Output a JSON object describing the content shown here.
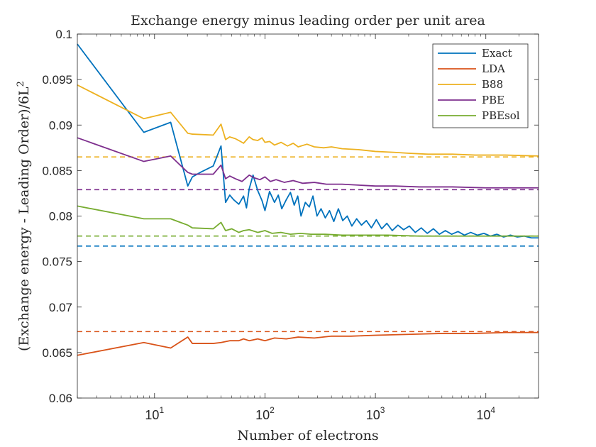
{
  "chart_data": {
    "type": "line",
    "title": "Exchange energy minus leading order per unit area",
    "xlabel": "Number of electrons",
    "ylabel": "(Exchange energy - Leading Order)/6L",
    "ylabel_exponent": "2",
    "xscale": "log",
    "xlim": [
      2,
      30000
    ],
    "ylim": [
      0.06,
      0.1
    ],
    "grid": false,
    "legend_position": "top-right",
    "y_ticks": [
      {
        "value": 0.06,
        "label": "0.06"
      },
      {
        "value": 0.065,
        "label": "0.065"
      },
      {
        "value": 0.07,
        "label": "0.07"
      },
      {
        "value": 0.075,
        "label": "0.075"
      },
      {
        "value": 0.08,
        "label": "0.08"
      },
      {
        "value": 0.085,
        "label": "0.085"
      },
      {
        "value": 0.09,
        "label": "0.09"
      },
      {
        "value": 0.095,
        "label": "0.095"
      },
      {
        "value": 0.1,
        "label": "0.1"
      }
    ],
    "x_ticks": [
      {
        "value": 10,
        "base": "10",
        "exp": "1"
      },
      {
        "value": 100,
        "base": "10",
        "exp": "2"
      },
      {
        "value": 1000,
        "base": "10",
        "exp": "3"
      },
      {
        "value": 10000,
        "base": "10",
        "exp": "4"
      }
    ],
    "series": [
      {
        "name": "Exact",
        "color": "#0072BD",
        "asymptote": 0.0767,
        "points": [
          [
            2,
            0.0989
          ],
          [
            8,
            0.0892
          ],
          [
            14,
            0.0903
          ],
          [
            20,
            0.0833
          ],
          [
            22,
            0.0843
          ],
          [
            26,
            0.0848
          ],
          [
            34,
            0.0855
          ],
          [
            40,
            0.0877
          ],
          [
            44,
            0.0815
          ],
          [
            48,
            0.0823
          ],
          [
            52,
            0.0818
          ],
          [
            58,
            0.0813
          ],
          [
            64,
            0.0822
          ],
          [
            68,
            0.0809
          ],
          [
            72,
            0.083
          ],
          [
            78,
            0.0845
          ],
          [
            86,
            0.0828
          ],
          [
            94,
            0.0817
          ],
          [
            100,
            0.0806
          ],
          [
            110,
            0.0827
          ],
          [
            122,
            0.0815
          ],
          [
            132,
            0.0823
          ],
          [
            142,
            0.0808
          ],
          [
            156,
            0.0818
          ],
          [
            170,
            0.0826
          ],
          [
            184,
            0.0812
          ],
          [
            198,
            0.0822
          ],
          [
            212,
            0.08
          ],
          [
            232,
            0.0815
          ],
          [
            252,
            0.081
          ],
          [
            272,
            0.0822
          ],
          [
            296,
            0.08
          ],
          [
            322,
            0.0808
          ],
          [
            352,
            0.0798
          ],
          [
            384,
            0.0806
          ],
          [
            420,
            0.0794
          ],
          [
            462,
            0.0808
          ],
          [
            506,
            0.0795
          ],
          [
            556,
            0.08
          ],
          [
            612,
            0.0789
          ],
          [
            676,
            0.0797
          ],
          [
            748,
            0.079
          ],
          [
            828,
            0.0795
          ],
          [
            920,
            0.0787
          ],
          [
            1020,
            0.0796
          ],
          [
            1140,
            0.0786
          ],
          [
            1270,
            0.0792
          ],
          [
            1420,
            0.0784
          ],
          [
            1600,
            0.079
          ],
          [
            1800,
            0.0785
          ],
          [
            2030,
            0.0789
          ],
          [
            2300,
            0.0782
          ],
          [
            2600,
            0.0787
          ],
          [
            2950,
            0.0781
          ],
          [
            3350,
            0.0786
          ],
          [
            3800,
            0.078
          ],
          [
            4300,
            0.0784
          ],
          [
            4900,
            0.078
          ],
          [
            5600,
            0.0783
          ],
          [
            6400,
            0.0779
          ],
          [
            7300,
            0.0782
          ],
          [
            8400,
            0.0779
          ],
          [
            9600,
            0.0781
          ],
          [
            11000,
            0.0778
          ],
          [
            12600,
            0.078
          ],
          [
            14500,
            0.0777
          ],
          [
            16700,
            0.0779
          ],
          [
            19300,
            0.0777
          ],
          [
            22300,
            0.0778
          ],
          [
            25800,
            0.0776
          ],
          [
            30000,
            0.0776
          ]
        ]
      },
      {
        "name": "LDA",
        "color": "#D95319",
        "asymptote": 0.0673,
        "points": [
          [
            2,
            0.0647
          ],
          [
            8,
            0.0661
          ],
          [
            14,
            0.0655
          ],
          [
            20,
            0.0667
          ],
          [
            22,
            0.066
          ],
          [
            34,
            0.066
          ],
          [
            40,
            0.0661
          ],
          [
            48,
            0.0663
          ],
          [
            58,
            0.0663
          ],
          [
            64,
            0.0665
          ],
          [
            72,
            0.0663
          ],
          [
            86,
            0.0665
          ],
          [
            100,
            0.0663
          ],
          [
            122,
            0.0666
          ],
          [
            156,
            0.0665
          ],
          [
            200,
            0.0667
          ],
          [
            280,
            0.0666
          ],
          [
            400,
            0.0668
          ],
          [
            600,
            0.0668
          ],
          [
            1000,
            0.0669
          ],
          [
            2000,
            0.067
          ],
          [
            4000,
            0.0671
          ],
          [
            8000,
            0.0671
          ],
          [
            15000,
            0.0672
          ],
          [
            30000,
            0.0672
          ]
        ]
      },
      {
        "name": "B88",
        "color": "#EDB120",
        "asymptote": 0.0865,
        "points": [
          [
            2,
            0.0944
          ],
          [
            8,
            0.0907
          ],
          [
            14,
            0.0914
          ],
          [
            20,
            0.0891
          ],
          [
            22,
            0.089
          ],
          [
            34,
            0.0889
          ],
          [
            40,
            0.0901
          ],
          [
            44,
            0.0884
          ],
          [
            48,
            0.0887
          ],
          [
            54,
            0.0885
          ],
          [
            60,
            0.0882
          ],
          [
            64,
            0.088
          ],
          [
            72,
            0.0887
          ],
          [
            78,
            0.0884
          ],
          [
            86,
            0.0883
          ],
          [
            94,
            0.0886
          ],
          [
            100,
            0.0881
          ],
          [
            110,
            0.0882
          ],
          [
            122,
            0.0878
          ],
          [
            140,
            0.0881
          ],
          [
            160,
            0.0877
          ],
          [
            180,
            0.088
          ],
          [
            200,
            0.0876
          ],
          [
            240,
            0.0879
          ],
          [
            280,
            0.0876
          ],
          [
            340,
            0.0875
          ],
          [
            400,
            0.0876
          ],
          [
            500,
            0.0874
          ],
          [
            700,
            0.0873
          ],
          [
            1000,
            0.0871
          ],
          [
            1500,
            0.087
          ],
          [
            2000,
            0.0869
          ],
          [
            3000,
            0.0868
          ],
          [
            5000,
            0.0868
          ],
          [
            8000,
            0.0867
          ],
          [
            15000,
            0.0867
          ],
          [
            30000,
            0.0866
          ]
        ]
      },
      {
        "name": "PBE",
        "color": "#7E2F8E",
        "asymptote": 0.0829,
        "points": [
          [
            2,
            0.0886
          ],
          [
            8,
            0.086
          ],
          [
            14,
            0.0866
          ],
          [
            20,
            0.0848
          ],
          [
            22,
            0.0846
          ],
          [
            34,
            0.0846
          ],
          [
            40,
            0.0856
          ],
          [
            44,
            0.0841
          ],
          [
            48,
            0.0844
          ],
          [
            54,
            0.0841
          ],
          [
            62,
            0.0838
          ],
          [
            72,
            0.0845
          ],
          [
            80,
            0.0842
          ],
          [
            90,
            0.084
          ],
          [
            100,
            0.0843
          ],
          [
            112,
            0.0838
          ],
          [
            126,
            0.084
          ],
          [
            150,
            0.0837
          ],
          [
            180,
            0.0839
          ],
          [
            220,
            0.0836
          ],
          [
            280,
            0.0837
          ],
          [
            360,
            0.0835
          ],
          [
            500,
            0.0835
          ],
          [
            700,
            0.0834
          ],
          [
            1000,
            0.0833
          ],
          [
            1500,
            0.0833
          ],
          [
            2500,
            0.0832
          ],
          [
            5000,
            0.0832
          ],
          [
            10000,
            0.0831
          ],
          [
            30000,
            0.0831
          ]
        ]
      },
      {
        "name": "PBEsol",
        "color": "#77AC30",
        "asymptote": 0.0778,
        "points": [
          [
            2,
            0.0811
          ],
          [
            8,
            0.0797
          ],
          [
            14,
            0.0797
          ],
          [
            20,
            0.079
          ],
          [
            22,
            0.0787
          ],
          [
            34,
            0.0786
          ],
          [
            40,
            0.0793
          ],
          [
            44,
            0.0784
          ],
          [
            50,
            0.0786
          ],
          [
            58,
            0.0782
          ],
          [
            64,
            0.0784
          ],
          [
            72,
            0.0785
          ],
          [
            86,
            0.0782
          ],
          [
            100,
            0.0784
          ],
          [
            116,
            0.0781
          ],
          [
            140,
            0.0782
          ],
          [
            170,
            0.078
          ],
          [
            210,
            0.0781
          ],
          [
            260,
            0.078
          ],
          [
            350,
            0.078
          ],
          [
            500,
            0.0779
          ],
          [
            800,
            0.0779
          ],
          [
            1300,
            0.0779
          ],
          [
            2500,
            0.0778
          ],
          [
            6000,
            0.0778
          ],
          [
            30000,
            0.0778
          ]
        ]
      }
    ]
  }
}
